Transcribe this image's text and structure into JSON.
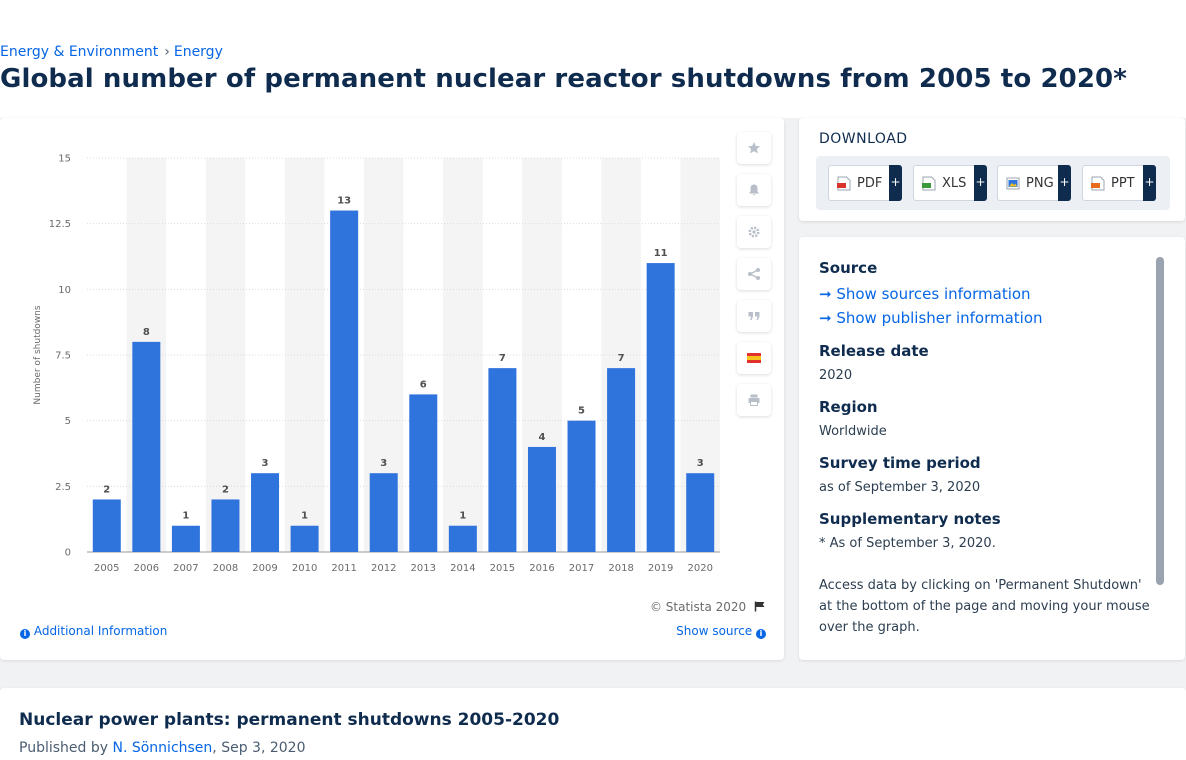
{
  "breadcrumb": {
    "items": [
      "Energy & Environment",
      "Energy"
    ],
    "separator": "›"
  },
  "page_title": "Global number of permanent nuclear reactor shutdowns from 2005 to 2020*",
  "chart_data": {
    "type": "bar",
    "title": "",
    "xlabel": "",
    "ylabel": "Number of shutdowns",
    "categories": [
      "2005",
      "2006",
      "2007",
      "2008",
      "2009",
      "2010",
      "2011",
      "2012",
      "2013",
      "2014",
      "2015",
      "2016",
      "2017",
      "2018",
      "2019",
      "2020"
    ],
    "values": [
      2,
      8,
      1,
      2,
      3,
      1,
      13,
      3,
      6,
      1,
      7,
      4,
      5,
      7,
      11,
      3
    ],
    "ylim": [
      0,
      15
    ],
    "yticks": [
      0,
      2.5,
      5,
      7.5,
      10,
      12.5,
      15
    ],
    "ytick_labels": [
      "0",
      "2.5",
      "5",
      "7.5",
      "10",
      "12.5",
      "15"
    ],
    "grid": true,
    "bar_color": "#2f73dc",
    "data_labels": true
  },
  "chart_footer": {
    "credit": "© Statista 2020",
    "additional_info": "Additional Information",
    "show_source": "Show source"
  },
  "toolbar": {
    "icons": [
      "star-icon",
      "bell-icon",
      "gear-icon",
      "share-icon",
      "quote-icon",
      "spain-flag-icon",
      "print-icon"
    ]
  },
  "download": {
    "heading": "DOWNLOAD",
    "buttons": [
      {
        "label": "PDF",
        "color": "#d9332b"
      },
      {
        "label": "XLS",
        "color": "#3a9a3a"
      },
      {
        "label": "PNG",
        "color": "#2f73dc"
      },
      {
        "label": "PPT",
        "color": "#e86a1c"
      }
    ],
    "plus": "+"
  },
  "info": {
    "source_label": "Source",
    "show_sources": "Show sources information",
    "show_publisher": "Show publisher information",
    "release_date_label": "Release date",
    "release_date": "2020",
    "region_label": "Region",
    "region": "Worldwide",
    "survey_period_label": "Survey time period",
    "survey_period": "as of September 3, 2020",
    "notes_label": "Supplementary notes",
    "notes_1": "* As of September 3, 2020.",
    "notes_2": "Access data by clicking on 'Permanent Shutdown' at the bottom of the page and moving your mouse over the graph."
  },
  "bottom": {
    "title": "Nuclear power plants: permanent shutdowns 2005-2020",
    "published_by": "Published by",
    "author": "N. Sönnichsen",
    "date": ", Sep 3, 2020"
  },
  "colors": {
    "accent": "#0666e5",
    "navy": "#0f2c4f"
  }
}
